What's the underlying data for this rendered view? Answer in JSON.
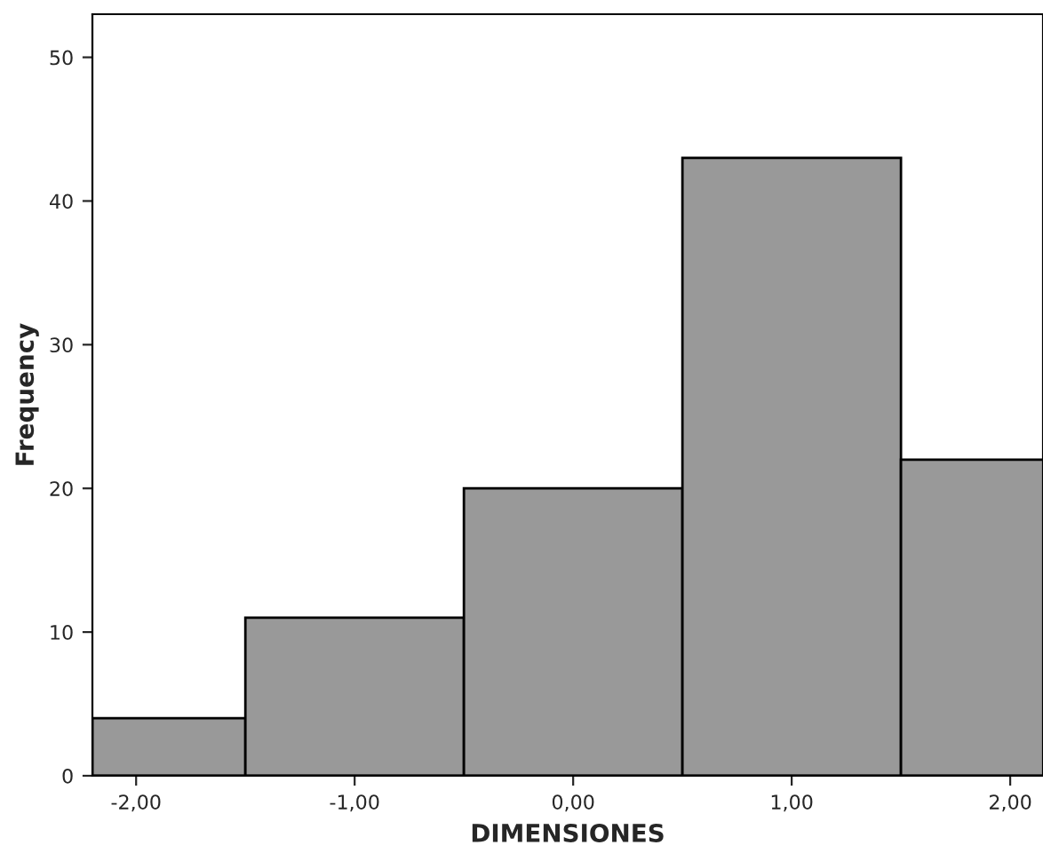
{
  "chart_data": {
    "type": "histogram",
    "xlabel": "DIMENSIONES",
    "ylabel": "Frequency",
    "bins": [
      -2.2,
      -1.5,
      -0.5,
      0.5,
      1.5,
      2.5
    ],
    "values": [
      4,
      11,
      20,
      43,
      22
    ],
    "color": "#999999",
    "xlim": [
      -2.2,
      2.15
    ],
    "ylim": [
      0,
      53
    ],
    "xticks": [
      {
        "value": -2,
        "label": "-2,00"
      },
      {
        "value": -1,
        "label": "-1,00"
      },
      {
        "value": 0,
        "label": "0,00"
      },
      {
        "value": 1,
        "label": "1,00"
      },
      {
        "value": 2,
        "label": "2,00"
      }
    ],
    "yticks": [
      0,
      10,
      20,
      30,
      40,
      50
    ],
    "grid": false
  }
}
